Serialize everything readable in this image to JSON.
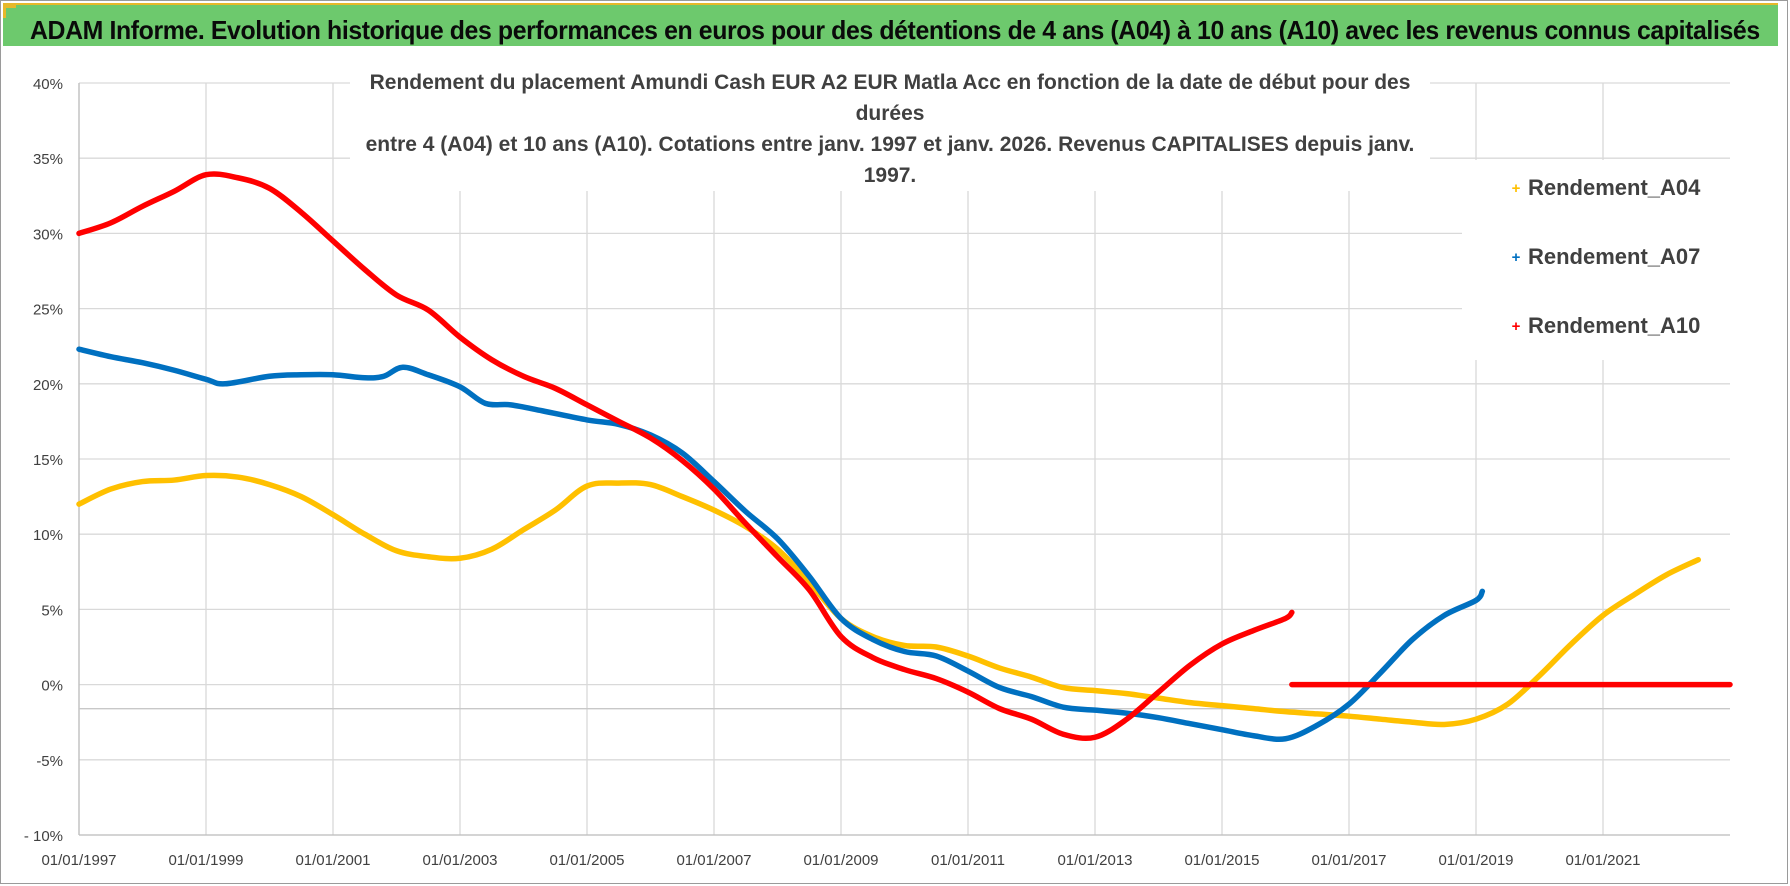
{
  "header": {
    "title": "ADAM Informe. Evolution historique des performances en euros pour des détentions de 4 ans (A04) à 10 ans (A10) avec les revenus connus capitalisés"
  },
  "colors": {
    "header_bg": "#6dc96d",
    "accent": "#e7b82a",
    "A04": "#ffc000",
    "A07": "#0070c0",
    "A10": "#ff0000",
    "grid": "#d9d9d9"
  },
  "chart_data": {
    "type": "line",
    "title_line1": "Rendement du placement Amundi Cash EUR A2 EUR Matla Acc en fonction de la date de début pour des durées",
    "title_line2": "entre 4 (A04) et 10 ans (A10).  Cotations entre janv. 1997 et janv. 2026. Revenus CAPITALISES  depuis janv. 1997.",
    "xlabel": "",
    "ylabel": "",
    "xlim": [
      1997.0,
      2023.0
    ],
    "ylim": [
      -10,
      40
    ],
    "grid": true,
    "legend_position": "top-right",
    "x_tick_labels": [
      "01/01/1997",
      "01/01/1999",
      "01/01/2001",
      "01/01/2003",
      "01/01/2005",
      "01/01/2007",
      "01/01/2009",
      "01/01/2011",
      "01/01/2013",
      "01/01/2015",
      "01/01/2017",
      "01/01/2019",
      "01/01/2021"
    ],
    "x_tick_values": [
      1997,
      1999,
      2001,
      2003,
      2005,
      2007,
      2009,
      2011,
      2013,
      2015,
      2017,
      2019,
      2021
    ],
    "y_tick_labels": [
      "40%",
      "35%",
      "30%",
      "25%",
      "20%",
      "15%",
      "10%",
      "5%",
      "0%",
      "-5%",
      "- 10%"
    ],
    "y_tick_values": [
      40,
      35,
      30,
      25,
      20,
      15,
      10,
      5,
      0,
      -5,
      -10
    ],
    "series": [
      {
        "name": "Rendement_A04",
        "color": "#ffc000",
        "points": [
          [
            1997.0,
            12.0
          ],
          [
            1997.5,
            13.0
          ],
          [
            1998.0,
            13.5
          ],
          [
            1998.5,
            13.6
          ],
          [
            1999.0,
            13.9
          ],
          [
            1999.5,
            13.8
          ],
          [
            2000.0,
            13.3
          ],
          [
            2000.5,
            12.5
          ],
          [
            2001.0,
            11.3
          ],
          [
            2001.5,
            10.0
          ],
          [
            2002.0,
            8.9
          ],
          [
            2002.5,
            8.5
          ],
          [
            2003.0,
            8.4
          ],
          [
            2003.5,
            9.0
          ],
          [
            2004.0,
            10.3
          ],
          [
            2004.5,
            11.6
          ],
          [
            2005.0,
            13.2
          ],
          [
            2005.5,
            13.4
          ],
          [
            2006.0,
            13.3
          ],
          [
            2006.5,
            12.5
          ],
          [
            2007.0,
            11.6
          ],
          [
            2007.5,
            10.5
          ],
          [
            2008.0,
            9.0
          ],
          [
            2008.5,
            6.8
          ],
          [
            2009.0,
            4.4
          ],
          [
            2009.5,
            3.2
          ],
          [
            2010.0,
            2.6
          ],
          [
            2010.5,
            2.5
          ],
          [
            2011.0,
            1.9
          ],
          [
            2011.5,
            1.1
          ],
          [
            2012.0,
            0.5
          ],
          [
            2012.5,
            -0.2
          ],
          [
            2013.0,
            -0.4
          ],
          [
            2013.5,
            -0.6
          ],
          [
            2014.0,
            -0.9
          ],
          [
            2014.5,
            -1.2
          ],
          [
            2015.0,
            -1.4
          ],
          [
            2015.5,
            -1.6
          ],
          [
            2016.0,
            -1.8
          ],
          [
            2016.5,
            -1.95
          ],
          [
            2017.0,
            -2.1
          ],
          [
            2017.5,
            -2.3
          ],
          [
            2018.0,
            -2.5
          ],
          [
            2018.5,
            -2.65
          ],
          [
            2019.0,
            -2.3
          ],
          [
            2019.5,
            -1.3
          ],
          [
            2020.0,
            0.6
          ],
          [
            2020.5,
            2.7
          ],
          [
            2021.0,
            4.6
          ],
          [
            2021.5,
            6.0
          ],
          [
            2022.0,
            7.3
          ],
          [
            2022.5,
            8.3
          ]
        ]
      },
      {
        "name": "Rendement_A07",
        "color": "#0070c0",
        "points": [
          [
            1997.0,
            22.3
          ],
          [
            1997.5,
            21.8
          ],
          [
            1998.0,
            21.4
          ],
          [
            1998.5,
            20.9
          ],
          [
            1999.0,
            20.3
          ],
          [
            1999.3,
            20.0
          ],
          [
            2000.0,
            20.5
          ],
          [
            2000.5,
            20.6
          ],
          [
            2001.0,
            20.6
          ],
          [
            2001.5,
            20.4
          ],
          [
            2001.8,
            20.5
          ],
          [
            2002.1,
            21.1
          ],
          [
            2002.5,
            20.6
          ],
          [
            2003.0,
            19.8
          ],
          [
            2003.4,
            18.7
          ],
          [
            2003.8,
            18.6
          ],
          [
            2004.3,
            18.2
          ],
          [
            2005.0,
            17.6
          ],
          [
            2005.5,
            17.3
          ],
          [
            2006.0,
            16.6
          ],
          [
            2006.5,
            15.4
          ],
          [
            2007.0,
            13.5
          ],
          [
            2007.5,
            11.5
          ],
          [
            2008.0,
            9.7
          ],
          [
            2008.5,
            7.2
          ],
          [
            2009.0,
            4.4
          ],
          [
            2009.5,
            3.0
          ],
          [
            2010.0,
            2.2
          ],
          [
            2010.5,
            1.9
          ],
          [
            2011.0,
            0.9
          ],
          [
            2011.5,
            -0.2
          ],
          [
            2012.0,
            -0.8
          ],
          [
            2012.5,
            -1.5
          ],
          [
            2013.0,
            -1.7
          ],
          [
            2013.5,
            -1.9
          ],
          [
            2014.0,
            -2.2
          ],
          [
            2014.5,
            -2.6
          ],
          [
            2015.0,
            -3.0
          ],
          [
            2015.5,
            -3.4
          ],
          [
            2016.0,
            -3.6
          ],
          [
            2016.5,
            -2.7
          ],
          [
            2017.0,
            -1.3
          ],
          [
            2017.5,
            0.8
          ],
          [
            2018.0,
            3.0
          ],
          [
            2018.5,
            4.6
          ],
          [
            2019.0,
            5.6
          ],
          [
            2019.1,
            6.2
          ]
        ]
      },
      {
        "name": "Rendement_A10",
        "color": "#ff0000",
        "points": [
          [
            1997.0,
            30.0
          ],
          [
            1997.5,
            30.7
          ],
          [
            1998.0,
            31.8
          ],
          [
            1998.5,
            32.8
          ],
          [
            1999.0,
            33.9
          ],
          [
            1999.5,
            33.7
          ],
          [
            2000.0,
            33.0
          ],
          [
            2000.5,
            31.4
          ],
          [
            2001.0,
            29.5
          ],
          [
            2001.5,
            27.6
          ],
          [
            2002.0,
            25.9
          ],
          [
            2002.5,
            24.9
          ],
          [
            2003.0,
            23.1
          ],
          [
            2003.5,
            21.6
          ],
          [
            2004.0,
            20.5
          ],
          [
            2004.5,
            19.7
          ],
          [
            2005.0,
            18.6
          ],
          [
            2005.5,
            17.5
          ],
          [
            2006.0,
            16.4
          ],
          [
            2006.5,
            14.9
          ],
          [
            2007.0,
            13.0
          ],
          [
            2007.5,
            10.7
          ],
          [
            2008.0,
            8.5
          ],
          [
            2008.5,
            6.3
          ],
          [
            2009.0,
            3.2
          ],
          [
            2009.5,
            1.8
          ],
          [
            2010.0,
            1.0
          ],
          [
            2010.5,
            0.4
          ],
          [
            2011.0,
            -0.5
          ],
          [
            2011.5,
            -1.6
          ],
          [
            2012.0,
            -2.3
          ],
          [
            2012.5,
            -3.3
          ],
          [
            2013.0,
            -3.5
          ],
          [
            2013.5,
            -2.3
          ],
          [
            2014.0,
            -0.5
          ],
          [
            2014.5,
            1.3
          ],
          [
            2015.0,
            2.7
          ],
          [
            2015.5,
            3.6
          ],
          [
            2016.0,
            4.4
          ],
          [
            2016.1,
            4.8
          ]
        ]
      },
      {
        "name": "",
        "color": "#ff0000",
        "points": [
          [
            2016.1,
            0.0
          ],
          [
            2023.0,
            0.0
          ]
        ]
      }
    ]
  },
  "legend": {
    "items": [
      {
        "label": "Rendement_A04",
        "color": "#ffc000",
        "mark": "+"
      },
      {
        "label": "Rendement_A07",
        "color": "#0070c0",
        "mark": "+"
      },
      {
        "label": "Rendement_A10",
        "color": "#ff0000",
        "mark": "+"
      }
    ]
  }
}
